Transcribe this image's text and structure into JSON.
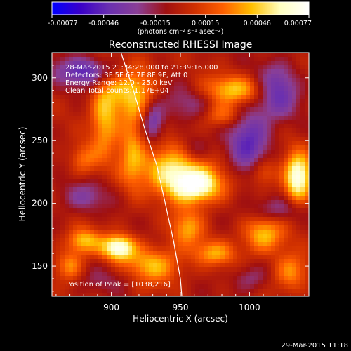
{
  "chart_data": {
    "type": "heatmap",
    "title": "Reconstructed RHESSI Image",
    "xlabel": "Heliocentric X (arcsec)",
    "ylabel": "Heliocentric Y (arcsec)",
    "xlim": [
      857,
      1043
    ],
    "ylim": [
      126,
      320
    ],
    "x_ticks": [
      900,
      950,
      1000
    ],
    "y_ticks": [
      150,
      200,
      250,
      300
    ],
    "colorbar": {
      "min": -0.00077,
      "max": 0.00077,
      "ticks": [
        "-0.00077",
        "-0.00046",
        "-0.00015",
        "0.00015",
        "0.00046",
        "0.00077"
      ],
      "unit_label": "(photons cm⁻² s⁻¹ asec⁻²)",
      "colormap": [
        "#0000ff",
        "#3a00c8",
        "#6a30b0",
        "#8a3f96",
        "#a01010",
        "#d03000",
        "#ff6000",
        "#ffc000",
        "#ffffc0",
        "#ffffff"
      ]
    },
    "annotations": [
      "28-Mar-2015 21:34:28.000 to 21:39:16.000",
      "Detectors: 3F 5F 6F 7F 8F 9F, Att 0",
      "Energy Range: 12.0 - 25.0 keV",
      "Clean     Total counts: 1.17E+04"
    ],
    "peak_label": "Position of Peak = [1038,216]",
    "peak_position": [
      1038,
      216
    ],
    "limb": [
      [
        907,
        320
      ],
      [
        916,
        290
      ],
      [
        924,
        260
      ],
      [
        933,
        230
      ],
      [
        939,
        200
      ],
      [
        945,
        170
      ],
      [
        950,
        140
      ],
      [
        951,
        126
      ]
    ],
    "blobs": [
      [
        960,
        215,
        20,
        15,
        1.0
      ],
      [
        940,
        230,
        18,
        18,
        0.55
      ],
      [
        915,
        240,
        10,
        30,
        0.45
      ],
      [
        895,
        270,
        10,
        35,
        0.5
      ],
      [
        915,
        290,
        18,
        25,
        0.55
      ],
      [
        990,
        290,
        25,
        12,
        0.6
      ],
      [
        980,
        270,
        15,
        10,
        0.4
      ],
      [
        1035,
        220,
        10,
        20,
        0.9
      ],
      [
        1010,
        225,
        10,
        12,
        0.4
      ],
      [
        905,
        165,
        12,
        10,
        0.85
      ],
      [
        880,
        170,
        12,
        10,
        0.55
      ],
      [
        930,
        150,
        20,
        15,
        0.55
      ],
      [
        955,
        180,
        12,
        15,
        0.45
      ],
      [
        1010,
        175,
        15,
        15,
        0.55
      ],
      [
        1030,
        145,
        12,
        15,
        0.45
      ],
      [
        975,
        160,
        15,
        10,
        0.45
      ],
      [
        880,
        235,
        10,
        12,
        0.35
      ],
      [
        870,
        150,
        10,
        12,
        0.45
      ],
      [
        880,
        205,
        18,
        12,
        -0.3
      ],
      [
        885,
        305,
        25,
        12,
        -0.55
      ],
      [
        930,
        265,
        8,
        15,
        -0.5
      ],
      [
        955,
        280,
        25,
        15,
        -0.25
      ],
      [
        1000,
        250,
        15,
        30,
        -0.5
      ],
      [
        1020,
        290,
        15,
        20,
        -0.55
      ],
      [
        1020,
        195,
        20,
        10,
        -0.3
      ],
      [
        960,
        245,
        10,
        10,
        -0.2
      ],
      [
        900,
        140,
        30,
        10,
        -0.15
      ],
      [
        1000,
        140,
        12,
        10,
        -0.25
      ]
    ]
  },
  "timestamp": "29-Mar-2015 11:18"
}
